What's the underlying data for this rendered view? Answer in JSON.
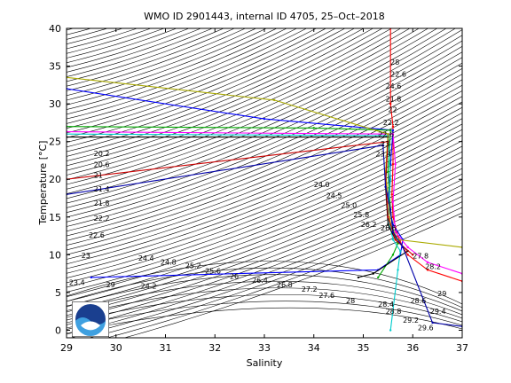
{
  "chart_data": {
    "type": "scatter",
    "title": "WMO ID 2901443, internal ID 4705, 25–Oct–2018",
    "xlabel": "Salinity",
    "ylabel": "Temperature [°C]",
    "xlim": [
      29,
      37
    ],
    "ylim": [
      -1,
      40
    ],
    "xticks": [
      "29",
      "30",
      "31",
      "32",
      "33",
      "34",
      "35",
      "36",
      "37"
    ],
    "yticks": [
      "0",
      "5",
      "10",
      "15",
      "20",
      "25",
      "30",
      "35",
      "40"
    ],
    "grid": false,
    "density_contour_labels": [
      {
        "text": "20.2",
        "x": 29.55,
        "y": 23.1
      },
      {
        "text": "20.6",
        "x": 29.55,
        "y": 21.6
      },
      {
        "text": "21",
        "x": 29.55,
        "y": 20.2
      },
      {
        "text": "21.4",
        "x": 29.55,
        "y": 18.4
      },
      {
        "text": "21.8",
        "x": 29.55,
        "y": 16.5
      },
      {
        "text": "22.2",
        "x": 29.55,
        "y": 14.5
      },
      {
        "text": "22.6",
        "x": 29.45,
        "y": 12.3
      },
      {
        "text": "23",
        "x": 29.3,
        "y": 9.6
      },
      {
        "text": "23.4",
        "x": 29.05,
        "y": 6.0
      },
      {
        "text": "24.4",
        "x": 30.45,
        "y": 9.2
      },
      {
        "text": "24.8",
        "x": 30.9,
        "y": 8.7
      },
      {
        "text": "25.2",
        "x": 31.4,
        "y": 8.2
      },
      {
        "text": "25.6",
        "x": 31.8,
        "y": 7.5
      },
      {
        "text": "26",
        "x": 32.3,
        "y": 6.8
      },
      {
        "text": "26.4",
        "x": 32.75,
        "y": 6.3
      },
      {
        "text": "26.8",
        "x": 33.25,
        "y": 5.7
      },
      {
        "text": "27.2",
        "x": 33.75,
        "y": 5.1
      },
      {
        "text": "27.6",
        "x": 34.1,
        "y": 4.3
      },
      {
        "text": "28",
        "x": 34.65,
        "y": 3.6
      },
      {
        "text": "28.4",
        "x": 35.3,
        "y": 3.1
      },
      {
        "text": "28.8",
        "x": 35.45,
        "y": 2.2
      },
      {
        "text": "29.2",
        "x": 35.8,
        "y": 1.0
      },
      {
        "text": "29.6",
        "x": 36.1,
        "y": 0.0
      },
      {
        "text": "29.4",
        "x": 36.35,
        "y": 2.2
      },
      {
        "text": "29",
        "x": 36.5,
        "y": 4.5
      },
      {
        "text": "28.6",
        "x": 35.95,
        "y": 3.6
      },
      {
        "text": "28.2",
        "x": 36.25,
        "y": 8.1
      },
      {
        "text": "27.8",
        "x": 36.0,
        "y": 9.5
      },
      {
        "text": "29",
        "x": 29.8,
        "y": 5.7
      },
      {
        "text": "24.2",
        "x": 30.5,
        "y": 5.5
      },
      {
        "text": "24.0",
        "x": 34.0,
        "y": 19.0
      },
      {
        "text": "24.5",
        "x": 34.25,
        "y": 17.5
      },
      {
        "text": "25.0",
        "x": 34.55,
        "y": 16.2
      },
      {
        "text": "25.8",
        "x": 34.8,
        "y": 15.0
      },
      {
        "text": "26.2",
        "x": 34.95,
        "y": 13.7
      },
      {
        "text": "26.6",
        "x": 35.35,
        "y": 13.2
      },
      {
        "text": "28",
        "x": 35.55,
        "y": 35.2
      },
      {
        "text": "22.6",
        "x": 35.55,
        "y": 33.6
      },
      {
        "text": "24.6",
        "x": 35.45,
        "y": 32.0
      },
      {
        "text": "21.8",
        "x": 35.45,
        "y": 30.3
      },
      {
        "text": "22",
        "x": 35.5,
        "y": 28.9
      },
      {
        "text": "22.2",
        "x": 35.4,
        "y": 27.2
      },
      {
        "text": "22.6",
        "x": 35.3,
        "y": 25.6
      },
      {
        "text": "23",
        "x": 35.35,
        "y": 24.4
      },
      {
        "text": "23.4",
        "x": 35.25,
        "y": 23.0
      }
    ],
    "series": [
      {
        "color": "#ff0000",
        "points": [
          [
            35.55,
            40
          ],
          [
            35.55,
            30
          ],
          [
            35.6,
            27
          ],
          [
            35.6,
            22
          ],
          [
            35.58,
            18
          ],
          [
            35.6,
            15
          ],
          [
            35.7,
            12.5
          ],
          [
            35.8,
            11
          ],
          [
            35.9,
            10
          ],
          [
            36.3,
            8
          ],
          [
            37,
            6.5
          ]
        ]
      },
      {
        "color": "#0000ff",
        "points": [
          [
            29,
            32
          ],
          [
            33,
            28
          ],
          [
            35.6,
            26.5
          ],
          [
            35.55,
            22
          ],
          [
            35.5,
            17
          ],
          [
            35.6,
            14
          ],
          [
            35.8,
            12
          ],
          [
            35.75,
            10
          ],
          [
            35.3,
            8
          ],
          [
            29.5,
            7
          ]
        ]
      },
      {
        "color": "#00aa00",
        "points": [
          [
            29,
            27
          ],
          [
            34,
            26.8
          ],
          [
            35.55,
            26.5
          ],
          [
            35.5,
            21
          ],
          [
            35.55,
            16
          ],
          [
            35.6,
            13
          ],
          [
            35.7,
            11.5
          ],
          [
            35.6,
            10
          ],
          [
            35.3,
            7
          ]
        ]
      },
      {
        "color": "#ff00ff",
        "points": [
          [
            29,
            26.3
          ],
          [
            35.6,
            26
          ],
          [
            35.65,
            22
          ],
          [
            35.6,
            17
          ],
          [
            35.65,
            13
          ],
          [
            35.9,
            11
          ],
          [
            36.3,
            9
          ],
          [
            37,
            7.5
          ]
        ]
      },
      {
        "color": "#00cccc",
        "points": [
          [
            29,
            26
          ],
          [
            35.5,
            25.8
          ],
          [
            35.55,
            20
          ],
          [
            35.5,
            15
          ],
          [
            35.6,
            12
          ],
          [
            35.75,
            10.5
          ],
          [
            35.7,
            8
          ],
          [
            35.55,
            0
          ]
        ]
      },
      {
        "color": "#000000",
        "points": [
          [
            29,
            25.6
          ],
          [
            35.5,
            25.6
          ],
          [
            35.45,
            19
          ],
          [
            35.5,
            14
          ],
          [
            35.65,
            12
          ],
          [
            35.9,
            10.5
          ],
          [
            35.2,
            7.5
          ],
          [
            34.9,
            7
          ]
        ]
      },
      {
        "color": "#aaaa00",
        "points": [
          [
            29,
            33.5
          ],
          [
            33.2,
            30.5
          ],
          [
            35.5,
            26
          ],
          [
            35.45,
            21
          ],
          [
            35.55,
            14
          ],
          [
            35.7,
            12
          ],
          [
            37,
            11
          ]
        ]
      },
      {
        "color": "#cc0000",
        "points": [
          [
            29,
            20
          ],
          [
            35.5,
            25
          ],
          [
            35.45,
            20
          ],
          [
            35.5,
            15
          ],
          [
            35.65,
            12
          ],
          [
            36,
            10
          ]
        ]
      },
      {
        "color": "#0000aa",
        "points": [
          [
            29,
            18
          ],
          [
            35.4,
            24.5
          ],
          [
            35.45,
            19
          ],
          [
            35.55,
            16
          ],
          [
            35.6,
            13
          ],
          [
            35.8,
            11
          ],
          [
            36.4,
            1
          ],
          [
            37,
            0.5
          ]
        ]
      }
    ]
  }
}
